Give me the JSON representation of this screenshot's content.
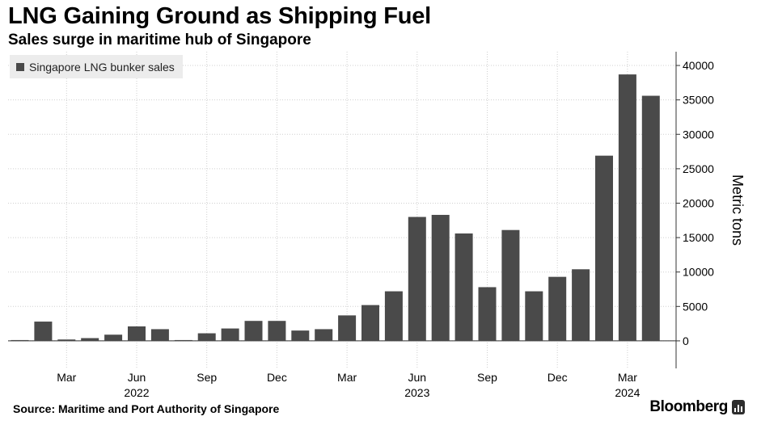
{
  "header": {
    "title": "LNG Gaining Ground as Shipping Fuel",
    "subtitle": "Sales surge in maritime hub of Singapore"
  },
  "footer": {
    "source": "Source: Maritime and Port Authority of Singapore",
    "brand": "Bloomberg"
  },
  "colors": {
    "bar": "#4a4a4a",
    "grid": "#cfcfcf",
    "axis": "#333333",
    "legend_bg": "#ececec"
  },
  "chart_data": {
    "type": "bar",
    "title": "LNG Gaining Ground as Shipping Fuel",
    "subtitle": "Sales surge in maritime hub of Singapore",
    "ylabel": "Metric tons",
    "xlabel": "",
    "ylim": [
      -4000,
      42000
    ],
    "yticks": [
      0,
      5000,
      10000,
      15000,
      20000,
      25000,
      30000,
      35000,
      40000
    ],
    "ytick_labels": [
      "0",
      "5000",
      "10000",
      "15000",
      "20000",
      "25000",
      "30000",
      "35000",
      "40000"
    ],
    "grid": true,
    "legend_position": "top-left",
    "series": [
      {
        "name": "Singapore LNG bunker sales",
        "categories": [
          "2022-01",
          "2022-02",
          "2022-03",
          "2022-04",
          "2022-05",
          "2022-06",
          "2022-07",
          "2022-08",
          "2022-09",
          "2022-10",
          "2022-11",
          "2022-12",
          "2023-01",
          "2023-02",
          "2023-03",
          "2023-04",
          "2023-05",
          "2023-06",
          "2023-07",
          "2023-08",
          "2023-09",
          "2023-10",
          "2023-11",
          "2023-12",
          "2024-01",
          "2024-02",
          "2024-03",
          "2024-04"
        ],
        "values": [
          100,
          2800,
          200,
          400,
          900,
          2100,
          1700,
          100,
          1100,
          1800,
          2900,
          2900,
          1500,
          1700,
          3700,
          5200,
          7200,
          18000,
          18300,
          15600,
          7800,
          16100,
          7200,
          9300,
          10400,
          26900,
          38700,
          35600
        ]
      }
    ],
    "x_tick_labels": [
      {
        "label": "Mar",
        "month": "2022-03"
      },
      {
        "label": "Jun",
        "month": "2022-06"
      },
      {
        "label": "Sep",
        "month": "2022-09"
      },
      {
        "label": "Dec",
        "month": "2022-12"
      },
      {
        "label": "Mar",
        "month": "2023-03"
      },
      {
        "label": "Jun",
        "month": "2023-06"
      },
      {
        "label": "Sep",
        "month": "2023-09"
      },
      {
        "label": "Dec",
        "month": "2023-12"
      },
      {
        "label": "Mar",
        "month": "2024-03"
      }
    ],
    "x_year_labels": [
      {
        "label": "2022",
        "month": "2022-06"
      },
      {
        "label": "2023",
        "month": "2023-06"
      },
      {
        "label": "2024",
        "month": "2024-03"
      }
    ]
  }
}
